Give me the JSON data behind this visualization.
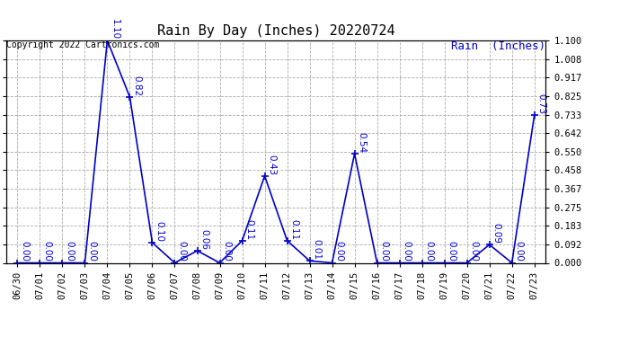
{
  "title": "Rain By Day (Inches) 20220724",
  "legend_label": "Rain  (Inches)",
  "copyright_text": "Copyright 2022 Cartronics.com",
  "line_color": "#0000cc",
  "background_color": "#ffffff",
  "grid_color": "#aaaaaa",
  "dates": [
    "06/30",
    "07/01",
    "07/02",
    "07/03",
    "07/04",
    "07/05",
    "07/06",
    "07/07",
    "07/08",
    "07/09",
    "07/10",
    "07/11",
    "07/12",
    "07/13",
    "07/14",
    "07/15",
    "07/16",
    "07/17",
    "07/18",
    "07/19",
    "07/20",
    "07/21",
    "07/22",
    "07/23"
  ],
  "values": [
    0.0,
    0.0,
    0.0,
    0.0,
    1.1,
    0.82,
    0.1,
    0.0,
    0.06,
    0.0,
    0.11,
    0.43,
    0.11,
    0.01,
    0.0,
    0.54,
    0.0,
    0.0,
    0.0,
    0.0,
    0.0,
    0.09,
    0.0,
    0.73
  ],
  "ylim": [
    0.0,
    1.1
  ],
  "yticks": [
    0.0,
    0.092,
    0.183,
    0.275,
    0.367,
    0.458,
    0.55,
    0.642,
    0.733,
    0.825,
    0.917,
    1.008,
    1.1
  ],
  "marker": "+",
  "linewidth": 1.2,
  "markersize": 6,
  "marker_linewidth": 1.2,
  "title_fontsize": 11,
  "legend_fontsize": 9,
  "copyright_fontsize": 7,
  "tick_fontsize": 7.5,
  "annot_fontsize": 7.5
}
